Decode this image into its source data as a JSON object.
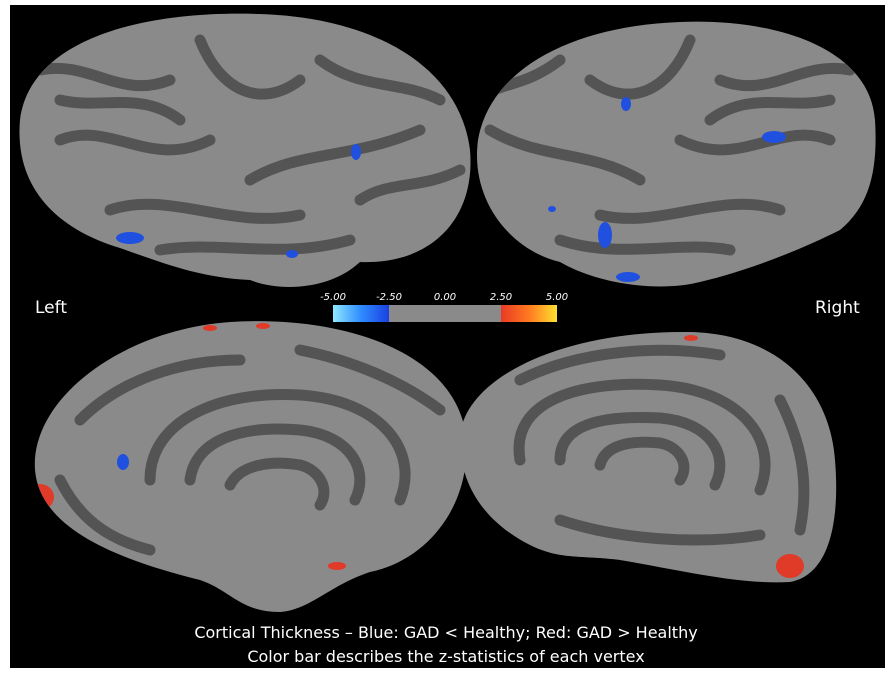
{
  "labels": {
    "left": "Left",
    "right": "Right"
  },
  "colorbar": {
    "ticks": [
      {
        "value": -5,
        "label": "-5.00"
      },
      {
        "value": -2.5,
        "label": "-2.50"
      },
      {
        "value": 0,
        "label": "0.00"
      },
      {
        "value": 2.5,
        "label": "2.50"
      },
      {
        "value": 5,
        "label": "5.00"
      }
    ]
  },
  "caption": [
    "Cortical Thickness – Blue: GAD < Healthy; Red: GAD > Healthy",
    "Color bar describes the z-statistics of each vertex"
  ]
}
